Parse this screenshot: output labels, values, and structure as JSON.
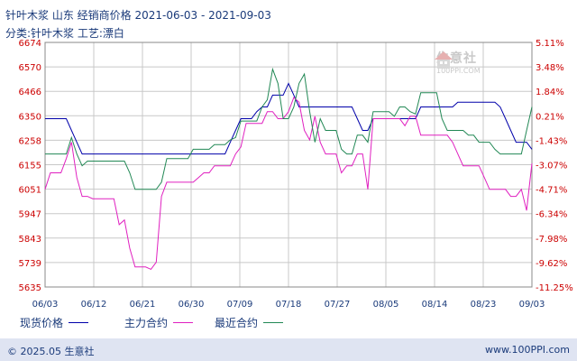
{
  "title": "针叶木浆  山东  经销商价格  2021-06-03 - 2021-09-03",
  "subtitle": "分类:针叶木浆  工艺:漂白",
  "watermark": {
    "cn": "生意社",
    "en": "100PPI.COM"
  },
  "footer": {
    "copyright": "© 2025.05 生意社",
    "site": "www.100PPI.com"
  },
  "colors": {
    "spot": "#0000aa",
    "main_contract": "#e020c0",
    "recent_contract": "#228855",
    "axis_text": "#cc0000",
    "grid": "#c8c8c8",
    "footer_bg": "#dfe4f2"
  },
  "chart_data": {
    "type": "line",
    "y_left_ticks": [
      "6674",
      "6570",
      "6466",
      "6350",
      "6258",
      "6155",
      "6051",
      "5947",
      "5843",
      "5739",
      "5635"
    ],
    "y_right_ticks": [
      "5.11%",
      "3.48%",
      "1.84%",
      "0.21%",
      "-1.43%",
      "-3.07%",
      "-4.71%",
      "-6.34%",
      "-7.98%",
      "-9.62%",
      "-11.25%"
    ],
    "x_ticks": [
      "06/03",
      "06/12",
      "06/21",
      "06/30",
      "07/09",
      "07/18",
      "07/27",
      "08/05",
      "08/14",
      "08/23",
      "09/03"
    ],
    "ylim": [
      5635,
      6674
    ],
    "legend": [
      "现货价格",
      "主力合约",
      "最近合约"
    ],
    "x": [
      0,
      1,
      2,
      3,
      4,
      5,
      6,
      7,
      8,
      9,
      10,
      11,
      12,
      13,
      14,
      15,
      16,
      17,
      18,
      19,
      20,
      21,
      22,
      23,
      24,
      25,
      26,
      27,
      28,
      29,
      30,
      31,
      32,
      33,
      34,
      35,
      36,
      37,
      38,
      39,
      40,
      41,
      42,
      43,
      44,
      45,
      46,
      47,
      48,
      49,
      50,
      51,
      52,
      53,
      54,
      55,
      56,
      57,
      58,
      59,
      60,
      61,
      62,
      63,
      64,
      65,
      66,
      67,
      68,
      69,
      70,
      71,
      72,
      73,
      74,
      75,
      76,
      77,
      78,
      79,
      80,
      81,
      82,
      83,
      84,
      85,
      86,
      87,
      88,
      89,
      90,
      91,
      92
    ],
    "series": [
      {
        "name": "现货价格",
        "color": "#0000aa",
        "values": [
          6350,
          6350,
          6350,
          6350,
          6350,
          6300,
          6250,
          6200,
          6200,
          6200,
          6200,
          6200,
          6200,
          6200,
          6200,
          6200,
          6200,
          6200,
          6200,
          6200,
          6200,
          6200,
          6200,
          6200,
          6200,
          6200,
          6200,
          6200,
          6200,
          6200,
          6200,
          6200,
          6200,
          6200,
          6200,
          6250,
          6300,
          6350,
          6350,
          6350,
          6380,
          6400,
          6400,
          6450,
          6450,
          6450,
          6500,
          6450,
          6400,
          6400,
          6400,
          6400,
          6400,
          6400,
          6400,
          6400,
          6400,
          6400,
          6400,
          6350,
          6300,
          6300,
          6350,
          6350,
          6350,
          6350,
          6350,
          6350,
          6350,
          6350,
          6350,
          6400,
          6400,
          6400,
          6400,
          6400,
          6400,
          6400,
          6420,
          6420,
          6420,
          6420,
          6420,
          6420,
          6420,
          6420,
          6400,
          6350,
          6300,
          6250,
          6250,
          6250,
          6220
        ]
      },
      {
        "name": "主力合约",
        "color": "#e020c0",
        "values": [
          6050,
          6120,
          6120,
          6120,
          6180,
          6250,
          6100,
          6020,
          6020,
          6010,
          6010,
          6010,
          6010,
          6010,
          5900,
          5920,
          5800,
          5720,
          5720,
          5720,
          5710,
          5740,
          6020,
          6080,
          6080,
          6080,
          6080,
          6080,
          6080,
          6100,
          6120,
          6120,
          6150,
          6150,
          6150,
          6150,
          6200,
          6230,
          6330,
          6330,
          6330,
          6330,
          6380,
          6380,
          6350,
          6350,
          6380,
          6440,
          6420,
          6300,
          6260,
          6360,
          6250,
          6200,
          6200,
          6200,
          6120,
          6150,
          6150,
          6200,
          6200,
          6050,
          6350,
          6350,
          6350,
          6350,
          6350,
          6350,
          6320,
          6360,
          6360,
          6280,
          6280,
          6280,
          6280,
          6280,
          6280,
          6250,
          6200,
          6150,
          6150,
          6150,
          6150,
          6100,
          6050,
          6050,
          6050,
          6050,
          6020,
          6020,
          6050,
          5960,
          6160
        ]
      },
      {
        "name": "最近合约",
        "color": "#228855",
        "values": [
          6200,
          6200,
          6200,
          6200,
          6200,
          6270,
          6200,
          6150,
          6170,
          6170,
          6170,
          6170,
          6170,
          6170,
          6170,
          6170,
          6120,
          6050,
          6050,
          6050,
          6050,
          6050,
          6080,
          6180,
          6180,
          6180,
          6180,
          6180,
          6220,
          6220,
          6220,
          6220,
          6240,
          6240,
          6240,
          6260,
          6270,
          6340,
          6340,
          6340,
          6340,
          6400,
          6430,
          6560,
          6500,
          6350,
          6350,
          6400,
          6500,
          6540,
          6380,
          6250,
          6350,
          6300,
          6300,
          6300,
          6220,
          6200,
          6200,
          6280,
          6280,
          6250,
          6380,
          6380,
          6380,
          6380,
          6360,
          6400,
          6400,
          6380,
          6370,
          6460,
          6460,
          6460,
          6460,
          6350,
          6300,
          6300,
          6300,
          6300,
          6280,
          6280,
          6250,
          6250,
          6250,
          6220,
          6200,
          6200,
          6200,
          6200,
          6200,
          6300,
          6400
        ]
      }
    ]
  }
}
